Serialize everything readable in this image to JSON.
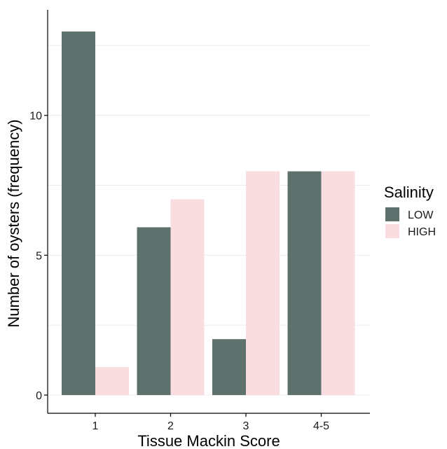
{
  "chart_data": {
    "type": "bar",
    "categories": [
      "1",
      "2",
      "3",
      "4-5"
    ],
    "series": [
      {
        "name": "LOW",
        "values": [
          13,
          6,
          2,
          8
        ]
      },
      {
        "name": "HIGH",
        "values": [
          1,
          7,
          8,
          8
        ]
      }
    ],
    "xlabel": "Tissue Mackin Score",
    "ylabel": "Number of oysters (frequency)",
    "ylim": [
      0,
      13.65
    ],
    "yticks": [
      0,
      5,
      10
    ],
    "grid": true,
    "legend": {
      "title": "Salinity",
      "position": "right",
      "entries": [
        "LOW",
        "HIGH"
      ]
    },
    "colors": {
      "LOW": "#5f716d",
      "HIGH": "#f9dde1"
    }
  }
}
